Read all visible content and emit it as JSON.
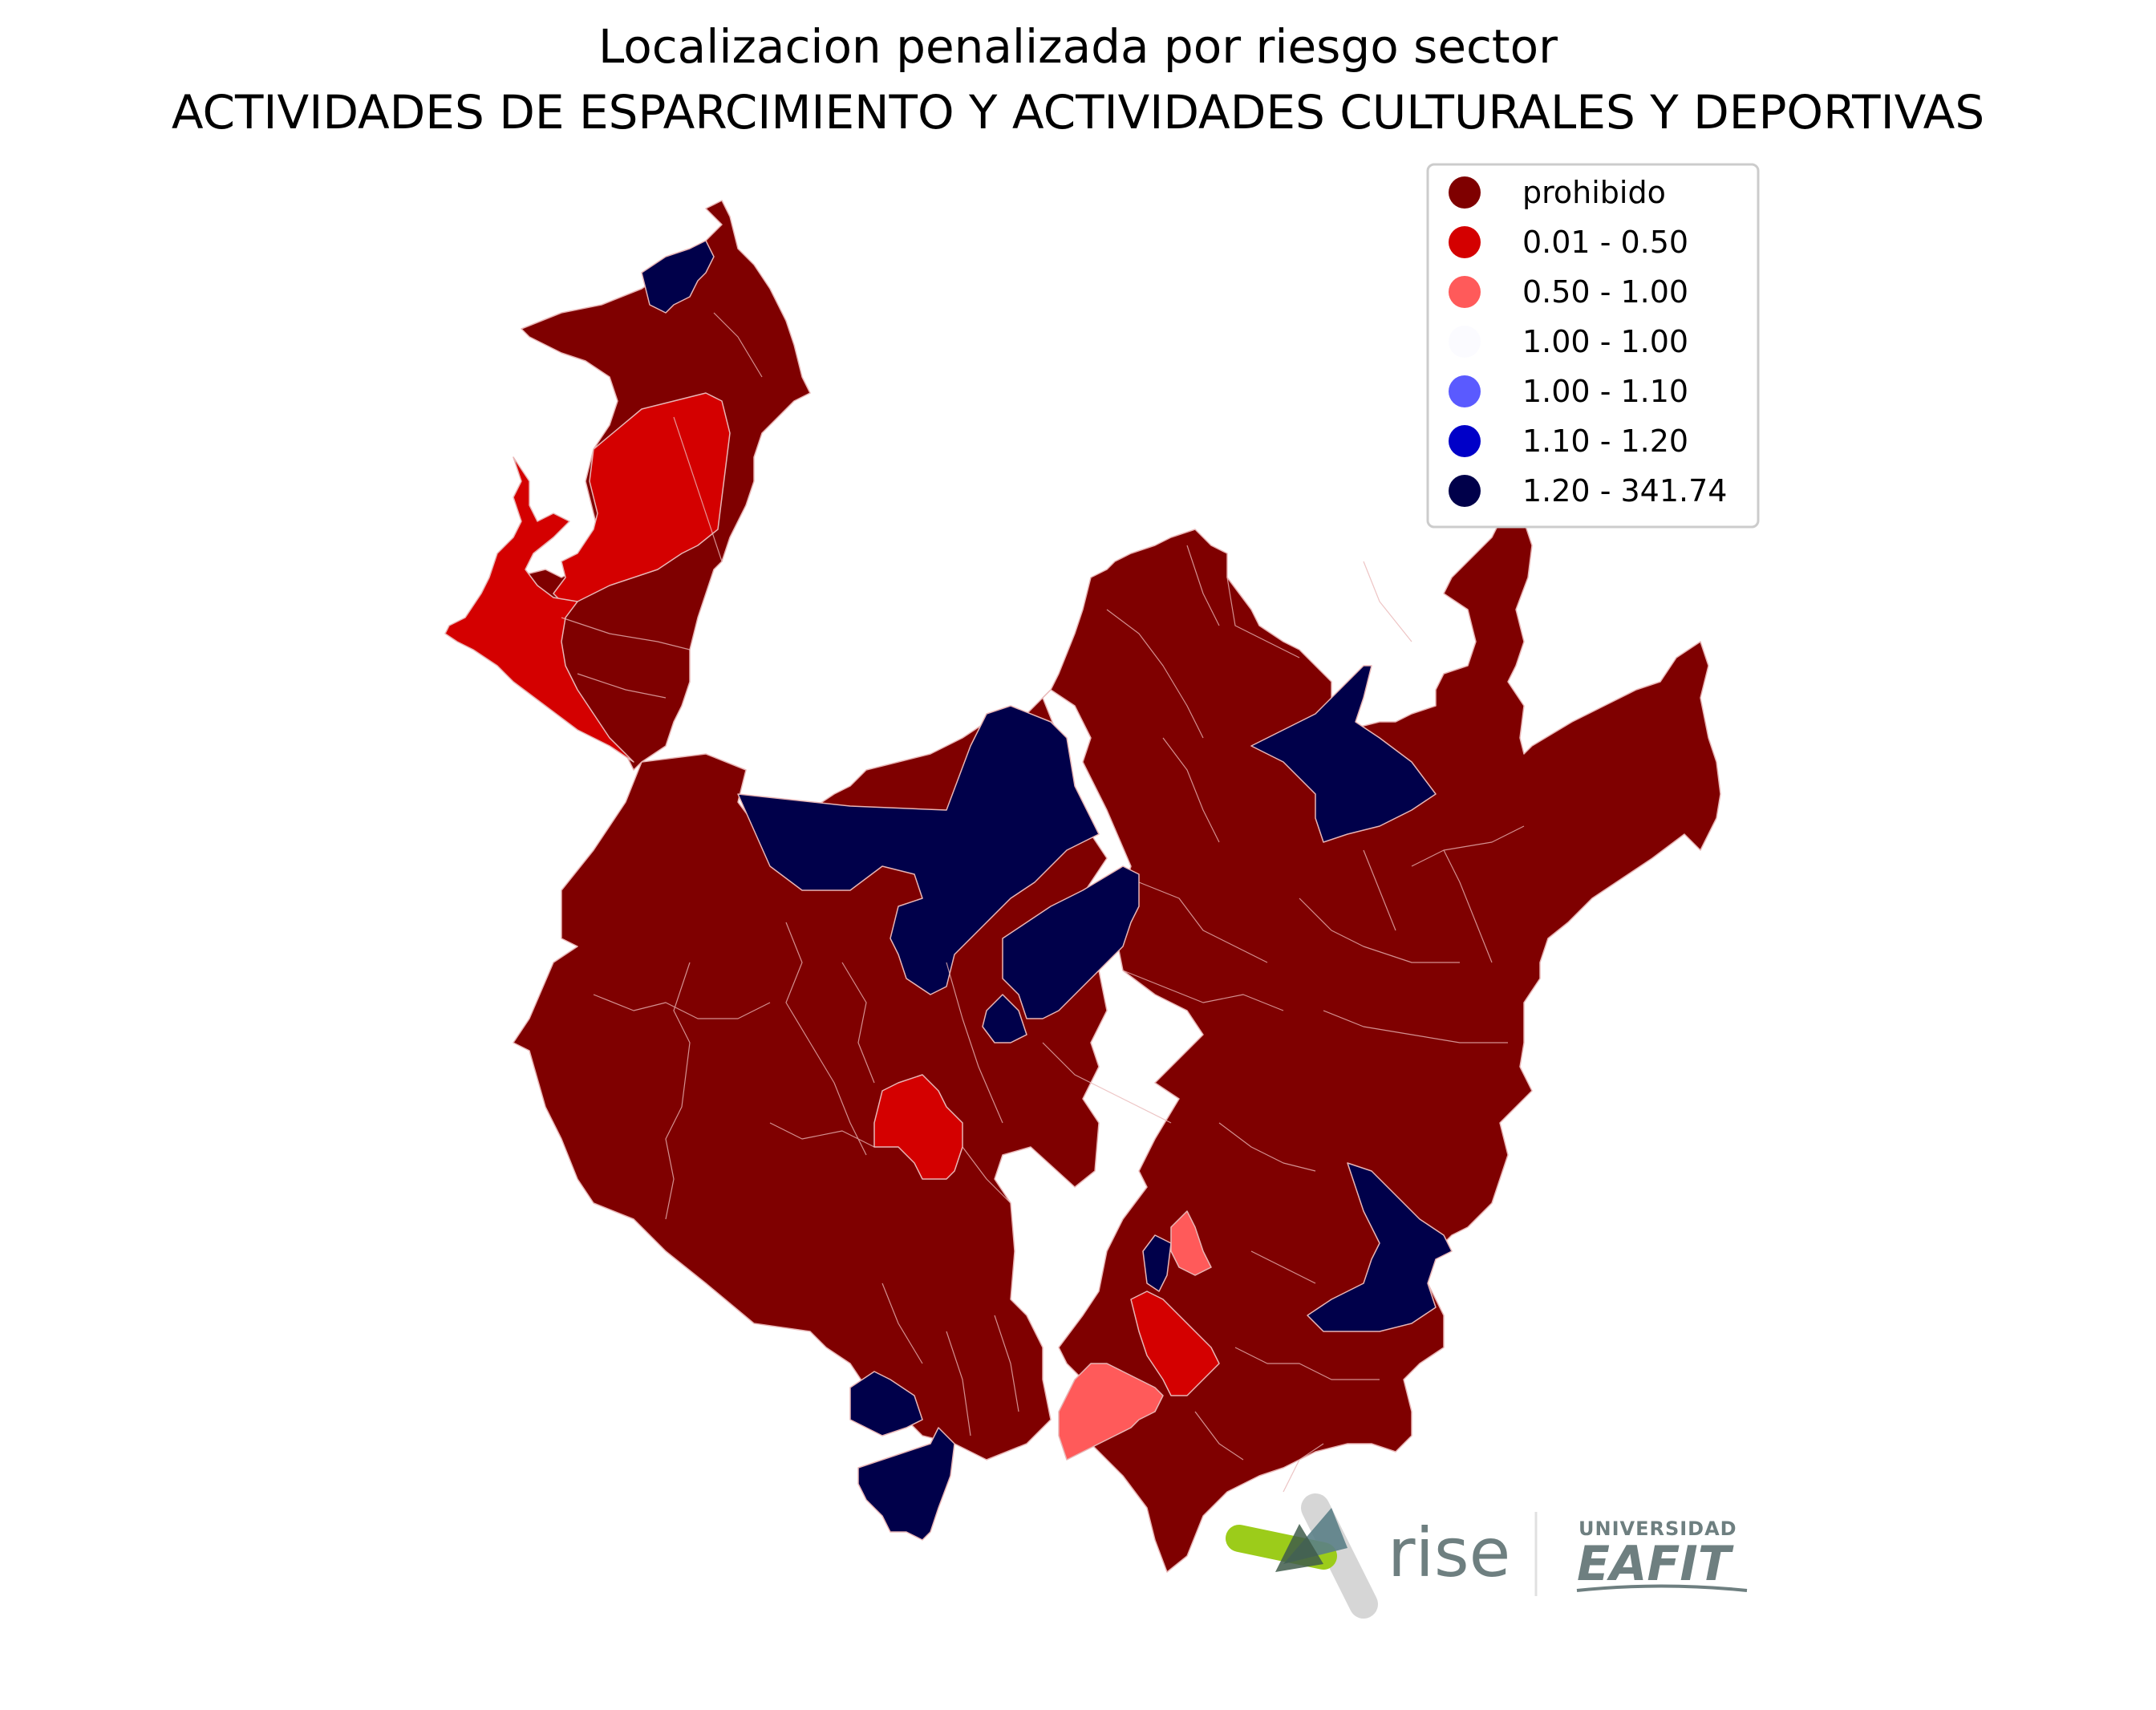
{
  "title": {
    "line1": "Localizacion penalizada por riesgo sector",
    "line2": "ACTIVIDADES DE ESPARCIMIENTO Y ACTIVIDADES CULTURALES Y DEPORTIVAS"
  },
  "legend": {
    "placement": "top-right",
    "entries": [
      {
        "label": "prohibido",
        "color": "#7f0000"
      },
      {
        "label": "0.01 - 0.50",
        "color": "#d40000"
      },
      {
        "label": "0.50 - 1.00",
        "color": "#ff5a5a"
      },
      {
        "label": "1.00 - 1.00",
        "color": "#fbfbff"
      },
      {
        "label": "1.00 - 1.10",
        "color": "#5a5aff"
      },
      {
        "label": "1.10 - 1.20",
        "color": "#0000c8"
      },
      {
        "label": "1.20 - 341.74",
        "color": "#00004a"
      }
    ]
  },
  "logos": {
    "rise": "rise",
    "eafit_top": "UNIVERSIDAD",
    "eafit_main": "EAFIT"
  }
}
